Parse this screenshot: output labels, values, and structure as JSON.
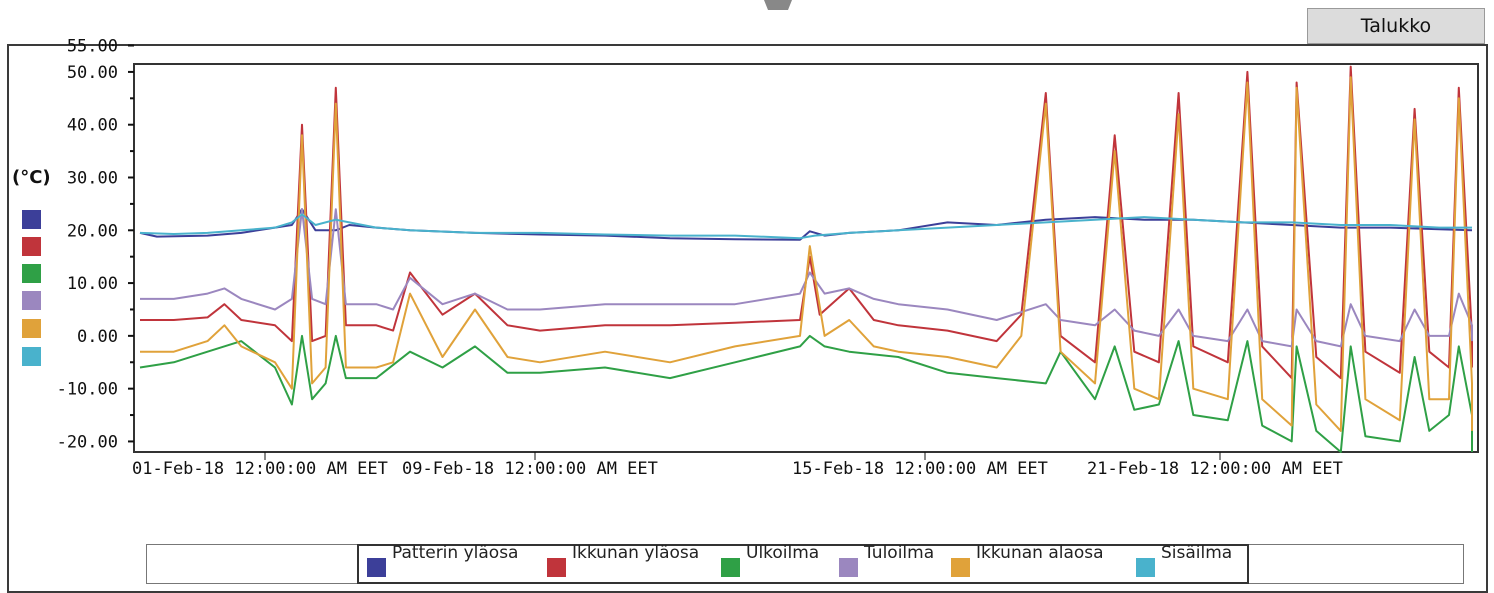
{
  "tab": {
    "label": "Talukko"
  },
  "colors": {
    "patterin_ylaosa": "#3c3f99",
    "ikkunan_ylaosa": "#c0343b",
    "ulkoilma": "#2fa046",
    "tuloilma": "#9b87bf",
    "ikkunan_alaosa": "#e0a23a",
    "sisailma": "#49b2cc"
  },
  "chart_data": {
    "type": "line",
    "y_unit": "(°C)",
    "ylim": [
      -22,
      55
    ],
    "y_ticks": [
      55,
      50,
      40,
      30,
      20,
      10,
      0,
      -10,
      -20
    ],
    "y_tick_labels": [
      "55.00",
      "50.00",
      "40.00",
      "30.00",
      "20.00",
      "10.00",
      "0.00",
      "-10.00",
      "-20.00"
    ],
    "x_tick_labels": [
      "01-Feb-18 12:00:00 AM EET",
      "09-Feb-18 12:00:00 AM EET",
      "15-Feb-18 12:00:00 AM EET",
      "21-Feb-18 12:00:00 AM EET"
    ],
    "x_tick_days": [
      1,
      9,
      15,
      21
    ],
    "xlim": [
      1,
      29
    ],
    "legend_position": "bottom",
    "series": [
      {
        "name": "Patterin yläosa",
        "color_key": "patterin_ylaosa",
        "points": [
          [
            1,
            19.5
          ],
          [
            1.5,
            18.8
          ],
          [
            3,
            19
          ],
          [
            4,
            19.5
          ],
          [
            5,
            20.5
          ],
          [
            5.5,
            21
          ],
          [
            5.8,
            24
          ],
          [
            6.2,
            20
          ],
          [
            6.8,
            20
          ],
          [
            7.2,
            21
          ],
          [
            8,
            20.5
          ],
          [
            9,
            20
          ],
          [
            10,
            19.5
          ],
          [
            11,
            19.2
          ],
          [
            12,
            19
          ],
          [
            13,
            18.5
          ],
          [
            14,
            18.3
          ],
          [
            15,
            18.2
          ],
          [
            15.2,
            19.8
          ],
          [
            15.5,
            19
          ],
          [
            16,
            19.5
          ],
          [
            17,
            20
          ],
          [
            18,
            21.5
          ],
          [
            19,
            21
          ],
          [
            20,
            22
          ],
          [
            21,
            22.5
          ],
          [
            22,
            22
          ],
          [
            23,
            22
          ],
          [
            24,
            21.5
          ],
          [
            25,
            21
          ],
          [
            26,
            20.5
          ],
          [
            27,
            20.5
          ],
          [
            28,
            20.2
          ],
          [
            29,
            20
          ]
        ]
      },
      {
        "name": "Ikkunan yläosa",
        "color_key": "ikkunan_ylaosa",
        "points": [
          [
            1,
            3
          ],
          [
            2,
            3
          ],
          [
            3,
            3.5
          ],
          [
            3.5,
            6
          ],
          [
            4,
            3
          ],
          [
            5,
            2
          ],
          [
            5.5,
            -1
          ],
          [
            5.8,
            40
          ],
          [
            6.1,
            -1
          ],
          [
            6.5,
            0
          ],
          [
            6.8,
            47
          ],
          [
            7.1,
            2
          ],
          [
            8,
            2
          ],
          [
            8.5,
            1
          ],
          [
            9,
            12
          ],
          [
            9.5,
            4
          ],
          [
            10,
            8
          ],
          [
            10.5,
            2
          ],
          [
            11,
            1
          ],
          [
            12,
            2
          ],
          [
            13,
            2
          ],
          [
            14,
            2.5
          ],
          [
            15,
            3
          ],
          [
            15.2,
            15
          ],
          [
            15.4,
            4
          ],
          [
            16,
            9
          ],
          [
            16.5,
            3
          ],
          [
            17,
            2
          ],
          [
            18,
            1
          ],
          [
            19,
            -1
          ],
          [
            19.5,
            4
          ],
          [
            20,
            46
          ],
          [
            20.3,
            0
          ],
          [
            21,
            -5
          ],
          [
            21.4,
            38
          ],
          [
            21.8,
            -3
          ],
          [
            22.3,
            -5
          ],
          [
            22.7,
            46
          ],
          [
            23,
            -2
          ],
          [
            23.7,
            -5
          ],
          [
            24.1,
            50
          ],
          [
            24.4,
            -2
          ],
          [
            25,
            -8
          ],
          [
            25.1,
            48
          ],
          [
            25.5,
            -4
          ],
          [
            26,
            -8
          ],
          [
            26.2,
            51
          ],
          [
            26.5,
            -3
          ],
          [
            27.2,
            -7
          ],
          [
            27.5,
            43
          ],
          [
            27.8,
            -3
          ],
          [
            28.2,
            -6
          ],
          [
            28.4,
            47
          ],
          [
            28.7,
            0
          ],
          [
            29.2,
            -5
          ],
          [
            29.6,
            -6
          ]
        ]
      },
      {
        "name": "Ulkoilma",
        "color_key": "ulkoilma",
        "points": [
          [
            1,
            -6
          ],
          [
            2,
            -5
          ],
          [
            3,
            -3
          ],
          [
            4,
            -1
          ],
          [
            5,
            -6
          ],
          [
            5.5,
            -13
          ],
          [
            5.8,
            0
          ],
          [
            6.1,
            -12
          ],
          [
            6.5,
            -9
          ],
          [
            6.8,
            0
          ],
          [
            7.1,
            -8
          ],
          [
            8,
            -8
          ],
          [
            9,
            -3
          ],
          [
            9.5,
            -6
          ],
          [
            10,
            -2
          ],
          [
            10.5,
            -7
          ],
          [
            11,
            -7
          ],
          [
            12,
            -6
          ],
          [
            13,
            -8
          ],
          [
            14,
            -5
          ],
          [
            15,
            -2
          ],
          [
            15.2,
            0
          ],
          [
            15.5,
            -2
          ],
          [
            16,
            -3
          ],
          [
            17,
            -4
          ],
          [
            18,
            -7
          ],
          [
            19,
            -8
          ],
          [
            20,
            -9
          ],
          [
            20.3,
            -3
          ],
          [
            21,
            -12
          ],
          [
            21.4,
            -2
          ],
          [
            21.8,
            -14
          ],
          [
            22.3,
            -13
          ],
          [
            22.7,
            -1
          ],
          [
            23,
            -15
          ],
          [
            23.7,
            -16
          ],
          [
            24.1,
            -1
          ],
          [
            24.4,
            -17
          ],
          [
            25,
            -20
          ],
          [
            25.1,
            -2
          ],
          [
            25.5,
            -18
          ],
          [
            26,
            -22
          ],
          [
            26.2,
            -2
          ],
          [
            26.5,
            -19
          ],
          [
            27.2,
            -20
          ],
          [
            27.5,
            -4
          ],
          [
            27.8,
            -18
          ],
          [
            28.2,
            -15
          ],
          [
            28.4,
            -2
          ],
          [
            28.7,
            -15
          ],
          [
            29.2,
            -20
          ],
          [
            29.6,
            -22
          ]
        ]
      },
      {
        "name": "Tuloilma",
        "color_key": "tuloilma",
        "points": [
          [
            1,
            7
          ],
          [
            2,
            7
          ],
          [
            3,
            8
          ],
          [
            3.5,
            9
          ],
          [
            4,
            7
          ],
          [
            5,
            5
          ],
          [
            5.5,
            7
          ],
          [
            5.8,
            24
          ],
          [
            6.1,
            7
          ],
          [
            6.5,
            6
          ],
          [
            6.8,
            24
          ],
          [
            7.1,
            6
          ],
          [
            8,
            6
          ],
          [
            8.5,
            5
          ],
          [
            9,
            11
          ],
          [
            9.5,
            6
          ],
          [
            10,
            8
          ],
          [
            10.5,
            5
          ],
          [
            11,
            5
          ],
          [
            12,
            6
          ],
          [
            13,
            6
          ],
          [
            14,
            6
          ],
          [
            15,
            8
          ],
          [
            15.2,
            12
          ],
          [
            15.5,
            8
          ],
          [
            16,
            9
          ],
          [
            16.5,
            7
          ],
          [
            17,
            6
          ],
          [
            18,
            5
          ],
          [
            19,
            3
          ],
          [
            20,
            6
          ],
          [
            20.3,
            3
          ],
          [
            21,
            2
          ],
          [
            21.4,
            5
          ],
          [
            21.8,
            1
          ],
          [
            22.3,
            0
          ],
          [
            22.7,
            5
          ],
          [
            23,
            0
          ],
          [
            23.7,
            -1
          ],
          [
            24.1,
            5
          ],
          [
            24.4,
            -1
          ],
          [
            25,
            -2
          ],
          [
            25.1,
            5
          ],
          [
            25.5,
            -1
          ],
          [
            26,
            -2
          ],
          [
            26.2,
            6
          ],
          [
            26.5,
            0
          ],
          [
            27.2,
            -1
          ],
          [
            27.5,
            5
          ],
          [
            27.8,
            0
          ],
          [
            28.2,
            0
          ],
          [
            28.4,
            8
          ],
          [
            28.7,
            2
          ],
          [
            29.2,
            0
          ],
          [
            29.6,
            -1
          ]
        ]
      },
      {
        "name": "Ikkunan alaosa",
        "color_key": "ikkunan_alaosa",
        "points": [
          [
            1,
            -3
          ],
          [
            2,
            -3
          ],
          [
            3,
            -1
          ],
          [
            3.5,
            2
          ],
          [
            4,
            -2
          ],
          [
            5,
            -5
          ],
          [
            5.5,
            -10
          ],
          [
            5.8,
            38
          ],
          [
            6.1,
            -9
          ],
          [
            6.5,
            -6
          ],
          [
            6.8,
            44
          ],
          [
            7.1,
            -6
          ],
          [
            8,
            -6
          ],
          [
            8.5,
            -5
          ],
          [
            9,
            8
          ],
          [
            9.5,
            -4
          ],
          [
            10,
            5
          ],
          [
            10.5,
            -4
          ],
          [
            11,
            -5
          ],
          [
            12,
            -3
          ],
          [
            13,
            -5
          ],
          [
            14,
            -2
          ],
          [
            15,
            0
          ],
          [
            15.2,
            17
          ],
          [
            15.5,
            0
          ],
          [
            16,
            3
          ],
          [
            16.5,
            -2
          ],
          [
            17,
            -3
          ],
          [
            18,
            -4
          ],
          [
            19,
            -6
          ],
          [
            19.5,
            0
          ],
          [
            20,
            44
          ],
          [
            20.3,
            -3
          ],
          [
            21,
            -9
          ],
          [
            21.4,
            35
          ],
          [
            21.8,
            -10
          ],
          [
            22.3,
            -12
          ],
          [
            22.7,
            42
          ],
          [
            23,
            -10
          ],
          [
            23.7,
            -12
          ],
          [
            24.1,
            48
          ],
          [
            24.4,
            -12
          ],
          [
            25,
            -17
          ],
          [
            25.1,
            47
          ],
          [
            25.5,
            -13
          ],
          [
            26,
            -18
          ],
          [
            26.2,
            49
          ],
          [
            26.5,
            -12
          ],
          [
            27.2,
            -16
          ],
          [
            27.5,
            41
          ],
          [
            27.8,
            -12
          ],
          [
            28.2,
            -12
          ],
          [
            28.4,
            45
          ],
          [
            28.7,
            -9
          ],
          [
            29.2,
            -14
          ],
          [
            29.6,
            -18
          ]
        ]
      },
      {
        "name": "Sisäilma",
        "color_key": "sisailma",
        "points": [
          [
            1,
            19.5
          ],
          [
            2,
            19.3
          ],
          [
            3,
            19.5
          ],
          [
            4,
            20
          ],
          [
            5,
            20.5
          ],
          [
            5.5,
            21.5
          ],
          [
            5.8,
            23
          ],
          [
            6.2,
            21
          ],
          [
            6.8,
            22
          ],
          [
            7.2,
            21.5
          ],
          [
            8,
            20.5
          ],
          [
            9,
            20
          ],
          [
            10,
            19.5
          ],
          [
            11,
            19.5
          ],
          [
            12,
            19.2
          ],
          [
            13,
            19
          ],
          [
            14,
            19
          ],
          [
            15,
            18.5
          ],
          [
            15.3,
            19
          ],
          [
            16,
            19.5
          ],
          [
            17,
            20
          ],
          [
            18,
            20.5
          ],
          [
            19,
            21
          ],
          [
            20,
            21.5
          ],
          [
            21,
            22
          ],
          [
            22,
            22.5
          ],
          [
            23,
            22
          ],
          [
            24,
            21.5
          ],
          [
            25,
            21.5
          ],
          [
            26,
            21
          ],
          [
            27,
            21
          ],
          [
            28,
            20.5
          ],
          [
            29,
            20.5
          ],
          [
            29.6,
            20.5
          ]
        ]
      }
    ]
  }
}
